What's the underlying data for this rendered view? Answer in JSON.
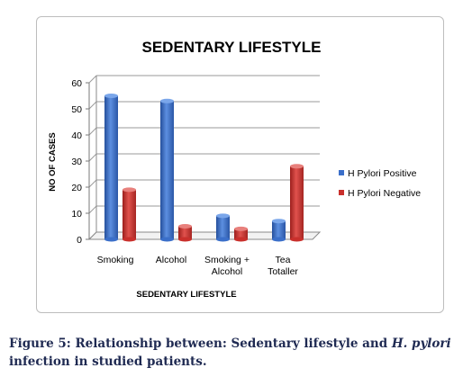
{
  "caption": {
    "prefix": "Figure 5: Relationship between: Sedentary lifestyle and ",
    "italic": "H. pylori",
    "suffix": "infection in studied patients."
  },
  "chart_data": {
    "type": "bar",
    "title": "SEDENTARY LIFESTYLE",
    "xlabel": "SEDENTARY LIFESTYLE",
    "ylabel": "NO OF CASES",
    "ylim": [
      0,
      60
    ],
    "yticks": [
      "0",
      "10",
      "20",
      "30",
      "40",
      "50",
      "60"
    ],
    "categories": [
      [
        "Smoking"
      ],
      [
        "Alcohol"
      ],
      [
        "Smoking +",
        "Alcohol"
      ],
      [
        "Tea",
        "Totaller"
      ]
    ],
    "series": [
      {
        "name": "H Pylori Positive",
        "values": [
          55,
          53,
          9,
          7
        ],
        "color": "#3b6fc9"
      },
      {
        "name": "H Pylori Negative",
        "values": [
          19,
          5,
          4,
          28
        ],
        "color": "#c9302c"
      }
    ],
    "grid": true,
    "legend": "right"
  }
}
